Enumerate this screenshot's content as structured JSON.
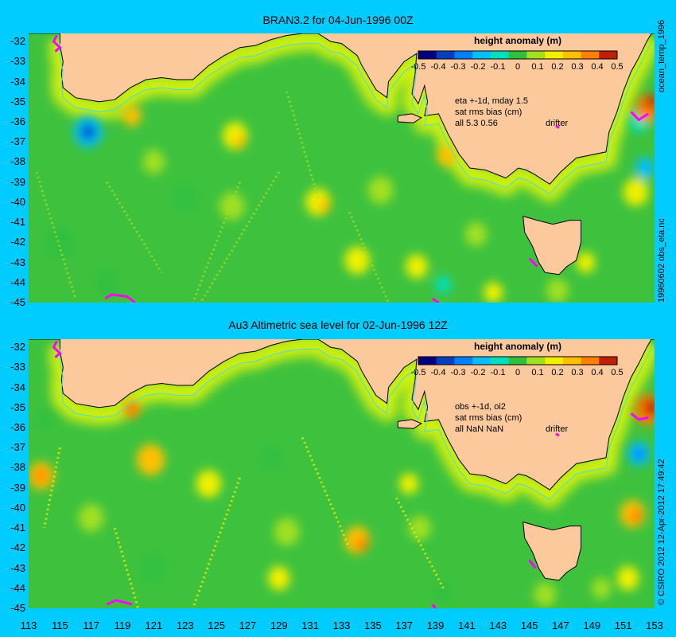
{
  "panels": [
    {
      "title": "BRAN3.2 for 04-Jun-1996 00Z",
      "colorbar_label": "height anomaly (m)",
      "annotation": [
        "eta +-1d, mday 1.5",
        "sat rms bias (cm)",
        "all 5.3 0.56"
      ],
      "drifter_label": "drifter",
      "side_label": "ocean_temp_1996",
      "side_label_bottom": "19960602 obs_eta.nc"
    },
    {
      "title": "Au3 Altimetric sea level  for 02-Jun-1996 12Z",
      "colorbar_label": "height anomaly (m)",
      "annotation": [
        "obs +-1d, oi2",
        "sat rms bias (cm)",
        "all NaN NaN"
      ],
      "drifter_label": "drifter",
      "side_label": "© CSIRO 2012  12-Apr-2012 17:49:42"
    }
  ],
  "colorbar_ticks": [
    "-0.5",
    "-0.4",
    "-0.3",
    "-0.2",
    "-0.1",
    "0",
    "0.1",
    "0.2",
    "0.3",
    "0.4",
    "0.5"
  ],
  "lat_ticks": [
    "-32",
    "-33",
    "-34",
    "-35",
    "-36",
    "-37",
    "-38",
    "-39",
    "-40",
    "-41",
    "-42",
    "-43",
    "-44",
    "-45"
  ],
  "lon_ticks": [
    "113",
    "115",
    "117",
    "119",
    "121",
    "123",
    "125",
    "127",
    "129",
    "131",
    "133",
    "135",
    "137",
    "139",
    "141",
    "143",
    "145",
    "147",
    "149",
    "151",
    "153"
  ],
  "colors": {
    "background": "#00ccff",
    "land": "#fcc99d",
    "ocean_base": "#3ec23e",
    "drifter": "#ff00ff",
    "shelf": "#ffff00"
  },
  "colormap": [
    "#000080",
    "#0040c0",
    "#0080ff",
    "#00c0ff",
    "#00e0c0",
    "#30c040",
    "#a0e020",
    "#f0f000",
    "#ffc000",
    "#ff8000",
    "#c02000"
  ]
}
